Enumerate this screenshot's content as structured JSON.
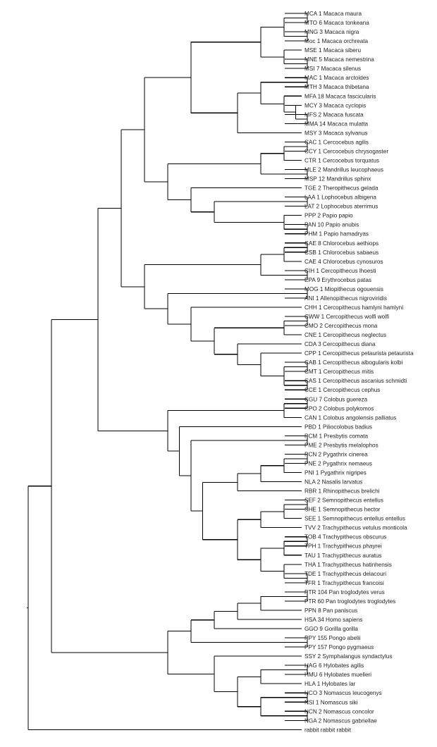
{
  "chart_data": {
    "type": "dendrogram",
    "title": "",
    "line_color": "#000000",
    "text_color": "#222222",
    "tree": {
      "h": 0,
      "c": [
        {
          "h": 1,
          "c": [
            {
              "h": 3,
              "c": [
                {
                  "h": 4,
                  "c": [
                    {
                      "h": 5,
                      "c": [
                        {
                          "h": 7,
                          "c": [
                            {
                              "h": 10,
                              "c": [
                                {
                                  "h": 11,
                                  "c": [
                                    {
                                      "h": 12,
                                      "c": [
                                        "MCA 1 Macaca maura",
                                        "MTO 6 Macaca tonkeana"
                                      ]
                                    },
                                    {
                                      "h": 12,
                                      "c": [
                                        "MNG 3 Macaca nigra",
                                        "Moc 1 Macaca orchreata"
                                      ]
                                    }
                                  ]
                                },
                                {
                                  "h": 11,
                                  "c": [
                                    "MSE 1 Macaca siberu",
                                    {
                                      "h": 12,
                                      "c": [
                                        "MNE 5 Macaca nemestrina",
                                        "MSI 7 Macaca silenus"
                                      ]
                                    }
                                  ]
                                }
                              ]
                            },
                            {
                              "h": 9,
                              "c": [
                                {
                                  "h": 10,
                                  "c": [
                                    {
                                      "h": 12,
                                      "c": [
                                        "MAC 1 Macaca arctoides",
                                        "MTH 3 Macaca thibetana"
                                      ]
                                    },
                                    {
                                      "h": 11,
                                      "c": [
                                        "MFA 18 Macaca fascicularis",
                                        {
                                          "h": 11.5,
                                          "c": [
                                            "MCY 3 Macaca cyclopis",
                                            {
                                              "h": 12,
                                              "c": [
                                                "MFS 2 Macaca fuscata",
                                                "MMA 14 Macaca mulatta"
                                              ]
                                            }
                                          ]
                                        }
                                      ]
                                    }
                                  ]
                                },
                                "MSY 3 Macaca sylvanus"
                              ]
                            }
                          ]
                        },
                        {
                          "h": 6,
                          "c": [
                            {
                              "h": 10,
                              "c": [
                                {
                                  "h": 11,
                                  "c": [
                                    {
                                      "h": 12,
                                      "c": [
                                        "CAC 1 Cercocebus agilis",
                                        "CCY 1 Cercocebus chrysogaster"
                                      ]
                                    },
                                    "CTR 1 Cercocebus torquatus"
                                  ]
                                },
                                {
                                  "h": 12,
                                  "c": [
                                    "MLE 2 Mandrillus leucophaeus",
                                    "MSP 12 Mandrillus sphinx"
                                  ]
                                }
                              ]
                            },
                            {
                              "h": 7,
                              "c": [
                                "TGE 2 Theropithecus gelada",
                                {
                                  "h": 8,
                                  "c": [
                                    {
                                      "h": 12,
                                      "c": [
                                        "LAA 1 Lophocebus albigena",
                                        "LAT 2 Lophocebus aterrimus"
                                      ]
                                    },
                                    {
                                      "h": 11,
                                      "c": [
                                        "PPP 2 Papio papio",
                                        {
                                          "h": 12,
                                          "c": [
                                            "PAN 10 Papio anubis",
                                            "PHM 1 Papio hamadryas"
                                          ]
                                        }
                                      ]
                                    }
                                  ]
                                }
                              ]
                            }
                          ]
                        }
                      ]
                    },
                    {
                      "h": 5,
                      "c": [
                        {
                          "h": 10,
                          "c": [
                            {
                              "h": 11,
                              "c": [
                                {
                                  "h": 12,
                                  "c": [
                                    "CAE 8 Chlorocebus aethiops",
                                    "CSB 1 Chlorocebus sabaeus"
                                  ]
                                },
                                "CAE 4 Chlorocebus cynosuros"
                              ]
                            },
                            {
                              "h": 12,
                              "c": [
                                "CIH 1 Cercopithecus lhoesti",
                                "EPA 9 Erythrocebus patas"
                              ]
                            }
                          ]
                        },
                        {
                          "h": 6,
                          "c": [
                            {
                              "h": 12,
                              "c": [
                                "MOG 1 Miopithecus ogouensis",
                                "ANI 1 Allenopithecus nigroviridis"
                              ]
                            },
                            {
                              "h": 7,
                              "c": [
                                "CHH 1 Cercopithecus hamlyni hamlyni",
                                {
                                  "h": 8,
                                  "c": [
                                    {
                                      "h": 11,
                                      "c": [
                                        {
                                          "h": 12,
                                          "c": [
                                            "CWW 1 Cercopithecus wolfi wolfi",
                                            "CMO 2 Cercopithecus mona"
                                          ]
                                        },
                                        "CNE 1 Cercopithecus neglectus"
                                      ]
                                    },
                                    {
                                      "h": 9,
                                      "c": [
                                        "CDA 3 Cercopithecus diana",
                                        {
                                          "h": 10,
                                          "c": [
                                            "CPP 1 Cercopithecus petaurista petaurista",
                                            {
                                              "h": 11,
                                              "c": [
                                                {
                                                  "h": 12,
                                                  "c": [
                                                    "CAB 1 Cercopithecus albogularis kolbi",
                                                    "CMT 1 Cercopithecus mitis"
                                                  ]
                                                },
                                                {
                                                  "h": 12,
                                                  "c": [
                                                    "CAS 1 Cercopithecus ascanius schmidti",
                                                    "CCE 1 Cercopithecus cephus"
                                                  ]
                                                }
                                              ]
                                            }
                                          ]
                                        }
                                      ]
                                    }
                                  ]
                                }
                              ]
                            }
                          ]
                        }
                      ]
                    }
                  ]
                },
                {
                  "h": 6,
                  "c": [
                    {
                      "h": 11,
                      "c": [
                        {
                          "h": 12,
                          "c": [
                            "CGU 7 Colobus guereza",
                            "CPO 2 Colobus polykomos"
                          ]
                        },
                        "CAN 1 Colobus angolensis palliatus"
                      ]
                    },
                    {
                      "h": 6.5,
                      "c": [
                        "PBD 1 Piliocolobus badius",
                        {
                          "h": 7,
                          "c": [
                            {
                              "h": 12,
                              "c": [
                                "PCM 1 Presbytis comata",
                                "PME 2 Presbytis melalophos"
                              ]
                            },
                            {
                              "h": 7.5,
                              "c": [
                                {
                                  "h": 9,
                                  "c": [
                                    {
                                      "h": 10,
                                      "c": [
                                        {
                                          "h": 11,
                                          "c": [
                                            {
                                              "h": 12,
                                              "c": [
                                                "PCN 2 Pygathrix cinerea",
                                                "PNE 2 Pygathrix nemaeus"
                                              ]
                                            },
                                            "PNI 1 Pygathrix nigripes"
                                          ]
                                        },
                                        "NLA 2 Nasalis larvatus"
                                      ]
                                    },
                                    "RBR 1 Rhinopithecus brelichi"
                                  ]
                                },
                                {
                                  "h": 9,
                                  "c": [
                                    {
                                      "h": 10,
                                      "c": [
                                        {
                                          "h": 11,
                                          "c": [
                                            {
                                              "h": 12,
                                              "c": [
                                                "SEF 2 Semnopithecus entellus",
                                                "SHE 1 Semnopithecus hector"
                                              ]
                                            },
                                            "SEE 1 Semnopithecus entellus entellus"
                                          ]
                                        },
                                        "TVV 2 Trachypithecus vetulus monticola"
                                      ]
                                    },
                                    {
                                      "h": 10,
                                      "c": [
                                        {
                                          "h": 11,
                                          "c": [
                                            {
                                              "h": 12,
                                              "c": [
                                                "TOB 4 Trachypithecus obscurus",
                                                "TPH 1 Trachypithecus phayrei"
                                              ]
                                            },
                                            "TAU 1 Trachypithecus auratus"
                                          ]
                                        },
                                        {
                                          "h": 11,
                                          "c": [
                                            "THA 1 Trachypithecus hatinhensis",
                                            {
                                              "h": 12,
                                              "c": [
                                                "TDE 1 Trachypithecus delacouri",
                                                "TFR 1 Trachypithecus francoisi"
                                              ]
                                            }
                                          ]
                                        }
                                      ]
                                    }
                                  ]
                                }
                              ]
                            }
                          ]
                        }
                      ]
                    }
                  ]
                }
              ]
            },
            {
              "h": 6,
              "c": [
                {
                  "h": 7,
                  "c": [
                    {
                      "h": 8,
                      "c": [
                        {
                          "h": 9,
                          "c": [
                            {
                              "h": 10,
                              "c": [
                                {
                                  "h": 12,
                                  "c": [
                                    "PTR 104 Pan troglodytes verus",
                                    "PTR 60 Pan troglodytes troglodytes"
                                  ]
                                },
                                "PPN 8 Pan paniscus"
                              ]
                            },
                            "HSA 34 Homo sapiens"
                          ]
                        },
                        "GGO 9 Gorilla gorilla"
                      ]
                    },
                    {
                      "h": 12,
                      "c": [
                        "PPY 155 Pongo abelii",
                        "PPY 157 Pongo pygmaeus"
                      ]
                    }
                  ]
                },
                {
                  "h": 8,
                  "c": [
                    "SSY 2 Symphalangus syndactylus",
                    {
                      "h": 9,
                      "c": [
                        {
                          "h": 10,
                          "c": [
                            {
                              "h": 12,
                              "c": [
                                "HAG 6 Hylobates agilis",
                                "HMU 6 Hylobates muelleri"
                              ]
                            },
                            "HLA 1 Hylobates lar"
                          ]
                        },
                        {
                          "h": 10,
                          "c": [
                            {
                              "h": 12,
                              "c": [
                                "HCO 3 Nomascus leucogenys",
                                "NSI 1 Nomascus siki"
                              ]
                            },
                            {
                              "h": 12,
                              "c": [
                                "NCN 2 Nomascus concolor",
                                "NGA 2 Nomascus gabriellae"
                              ]
                            }
                          ]
                        }
                      ]
                    }
                  ]
                }
              ]
            }
          ]
        },
        "rabbit rabbit rabbit"
      ]
    }
  }
}
